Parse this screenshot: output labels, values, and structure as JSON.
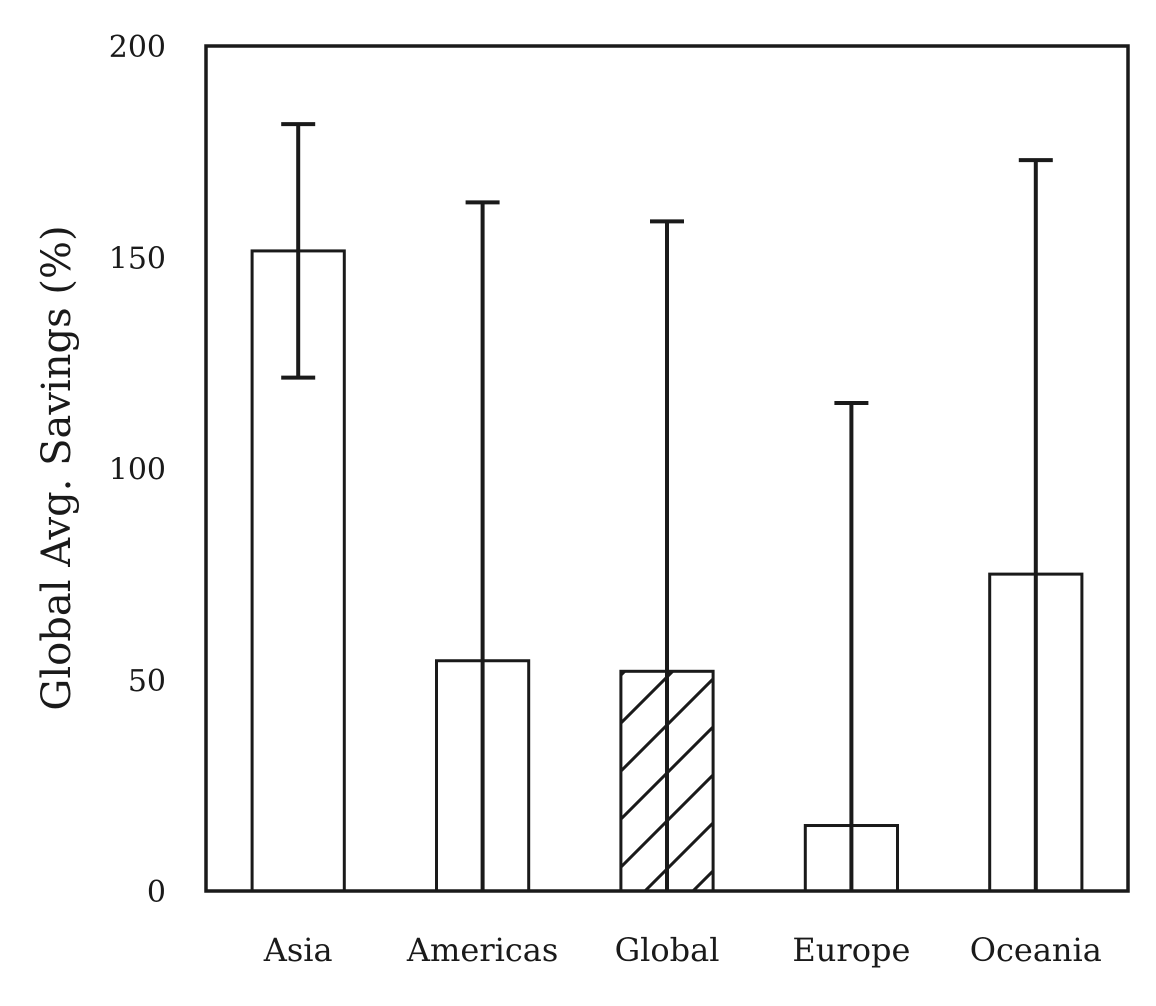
{
  "chart_data": {
    "type": "bar",
    "title": "",
    "xlabel": "",
    "ylabel": "Global Avg. Savings (%)",
    "ylim": [
      0,
      200
    ],
    "yticks": [
      0,
      50,
      100,
      150,
      200
    ],
    "categories": [
      "Asia",
      "Americas",
      "Global",
      "Europe",
      "Oceania"
    ],
    "values": [
      151.5,
      54.5,
      52,
      15.5,
      75
    ],
    "error_low": [
      121.5,
      0,
      0,
      0,
      0
    ],
    "error_high": [
      181.5,
      163,
      158.5,
      115.5,
      173
    ],
    "hatched": [
      false,
      false,
      true,
      false,
      false
    ],
    "grid": false,
    "colors": {
      "bar_fill": "#ffffff",
      "stroke": "#1a1a1a"
    }
  }
}
